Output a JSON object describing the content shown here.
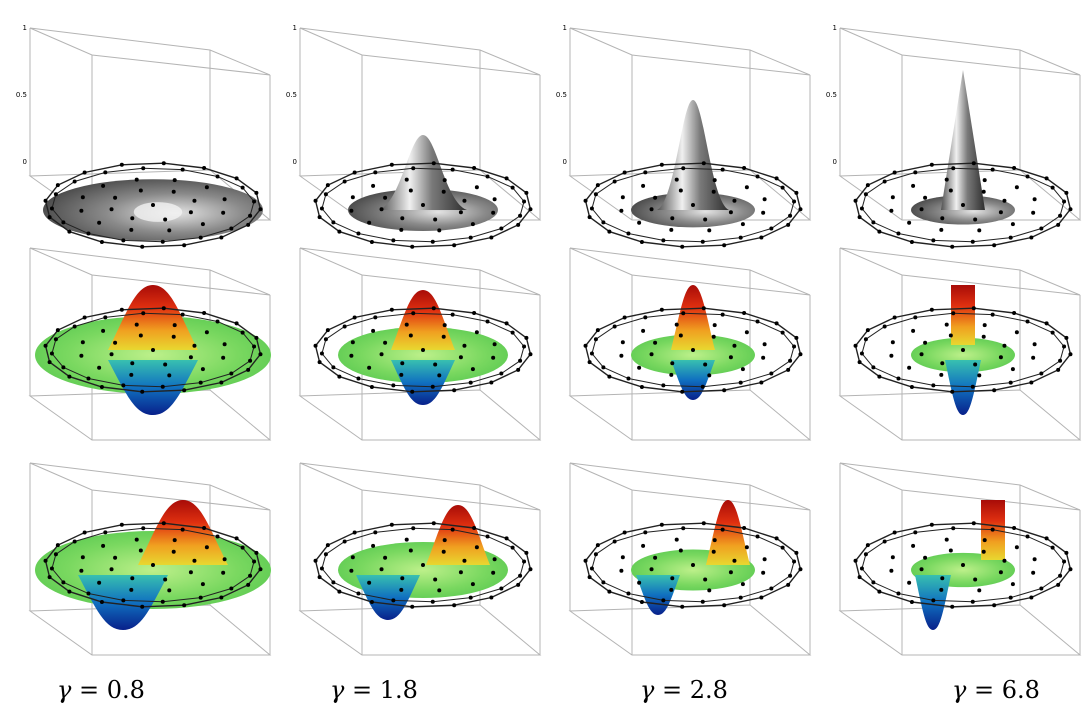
{
  "captions": [
    {
      "symbol": "γ",
      "text": "= 0.8"
    },
    {
      "symbol": "γ",
      "text": "= 1.8"
    },
    {
      "symbol": "γ",
      "text": "= 2.8"
    },
    {
      "symbol": "γ",
      "text": "= 6.8"
    }
  ],
  "z_ticks": [
    "1",
    "0.5",
    "0"
  ],
  "rows": [
    {
      "style": "grey-surface"
    },
    {
      "style": "rainbow-surface"
    },
    {
      "style": "rainbow-surface"
    }
  ],
  "colors": {
    "box": "#b4b4b4",
    "control_polygon": "#222222",
    "points": "#000000",
    "grey_light": "#d8d8d8",
    "grey_dark": "#3a3a3a",
    "rainbow_red": "#c21810",
    "rainbow_yellow": "#e8d830",
    "rainbow_green": "#6fd660",
    "rainbow_blue": "#1040b0"
  }
}
